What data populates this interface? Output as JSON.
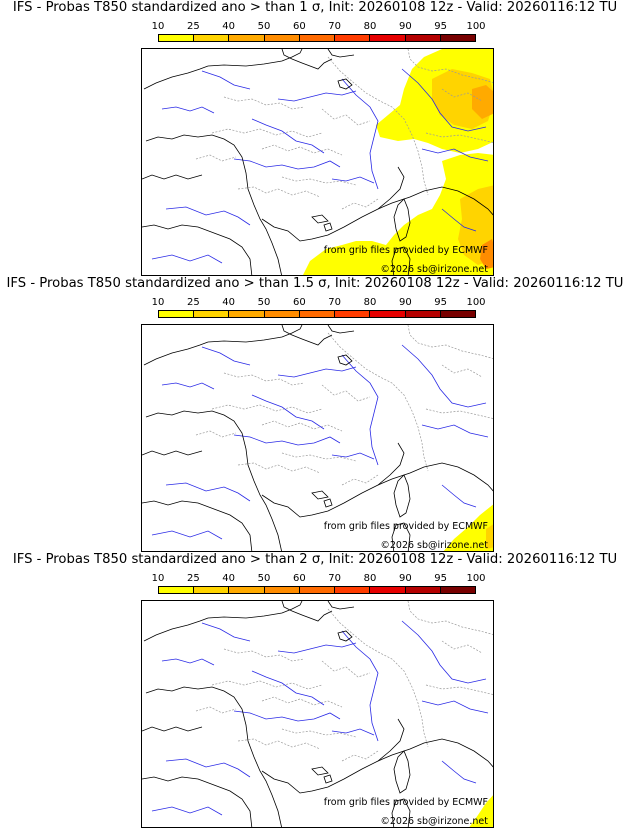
{
  "panels": [
    {
      "title": "IFS - Probas T850  standardized ano > than 1 σ, Init: 20260108 12z - Valid: 20260116:12 TU",
      "intensity": "high"
    },
    {
      "title": "IFS - Probas T850  standardized ano > than 1.5 σ, Init: 20260108 12z - Valid: 20260116:12 TU",
      "intensity": "medium"
    },
    {
      "title": "IFS - Probas T850  standardized ano > than 2 σ, Init: 20260108 12z - Valid: 20260116:12 TU",
      "intensity": "low"
    }
  ],
  "colorbar": {
    "labels": [
      "10",
      "25",
      "40",
      "50",
      "60",
      "70",
      "80",
      "90",
      "95",
      "100"
    ],
    "colors": [
      "#ffff00",
      "#ffd400",
      "#ffaa00",
      "#ff8c00",
      "#ff6a00",
      "#ff3c00",
      "#e60000",
      "#b40000",
      "#780000"
    ]
  },
  "credits": {
    "source": "from grib files provided by ECMWF",
    "copyright": "©2026 sb@irizone.net"
  }
}
